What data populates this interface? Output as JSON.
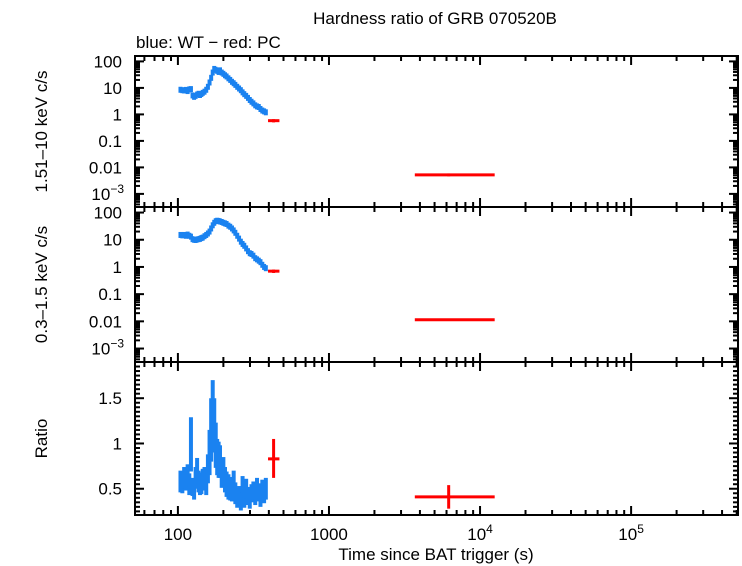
{
  "chart_data": {
    "type": "scatter",
    "title": "Hardness ratio of GRB 070520B",
    "subtitle": "blue: WT − red: PC",
    "xlabel": "Time since BAT trigger (s)",
    "xscale": "log",
    "xlim": [
      52,
      510000
    ],
    "xticks": [
      {
        "value": 100,
        "label": "100"
      },
      {
        "value": 1000,
        "label": "1000"
      },
      {
        "value": 10000,
        "label": "10",
        "sup": "4"
      },
      {
        "value": 100000,
        "label": "10",
        "sup": "5"
      }
    ],
    "colors": {
      "WT": "#1a82f0",
      "PC": "#ff0000",
      "axis": "#000000"
    },
    "legend": "subtitle-top-left",
    "panels": [
      {
        "id": "hard",
        "ylabel": "1.51–10 keV c/s",
        "yscale": "log",
        "ylim": [
          0.00032,
          160
        ],
        "yticks": [
          {
            "value": 100,
            "label": "100"
          },
          {
            "value": 10,
            "label": "10"
          },
          {
            "value": 1,
            "label": "1"
          },
          {
            "value": 0.1,
            "label": "0.1"
          },
          {
            "value": 0.01,
            "label": "0.01"
          },
          {
            "value": 0.001,
            "label": "10",
            "sup": "−3"
          }
        ],
        "series": [
          {
            "name": "WT",
            "x": [
              104,
              107,
              110,
              113,
              116,
              119,
              122,
              125,
              128,
              131,
              134,
              137,
              140,
              143,
              146,
              150,
              154,
              158,
              162,
              166,
              170,
              174,
              178,
              182,
              186,
              190,
              195,
              200,
              205,
              210,
              216,
              222,
              228,
              234,
              240,
              247,
              254,
              261,
              268,
              275,
              283,
              291,
              299,
              307,
              316,
              325,
              334,
              343,
              352,
              362,
              372,
              382
            ],
            "y": [
              8.5,
              8.2,
              8.0,
              8.4,
              7.6,
              8.8,
              9.0,
              5.2,
              4.6,
              5.0,
              5.6,
              6.0,
              5.4,
              5.9,
              6.5,
              7.2,
              8.5,
              11,
              16,
              24,
              38,
              52,
              48,
              44,
              40,
              46,
              38,
              34,
              30,
              27,
              23,
              20,
              17,
              15,
              13,
              11,
              9.5,
              8.2,
              6.8,
              5.8,
              5.0,
              4.2,
              3.5,
              3.0,
              2.6,
              2.2,
              2.0,
              1.9,
              1.6,
              1.4,
              1.3,
              1.2
            ],
            "xerr_rel": 0.015
          },
          {
            "name": "PC",
            "x": [
              430,
              6200
            ],
            "y": [
              0.58,
              0.0052
            ],
            "xlo": [
              395,
              3700
            ],
            "xhi": [
              470,
              12500
            ],
            "ylo": [
              0.5,
              0.0046
            ],
            "yhi": [
              0.66,
              0.0059
            ]
          }
        ]
      },
      {
        "id": "soft",
        "ylabel": "0.3–1.5 keV c/s",
        "yscale": "log",
        "ylim": [
          0.00032,
          160
        ],
        "yticks": [
          {
            "value": 100,
            "label": "100"
          },
          {
            "value": 10,
            "label": "10"
          },
          {
            "value": 1,
            "label": "1"
          },
          {
            "value": 0.1,
            "label": "0.1"
          },
          {
            "value": 0.01,
            "label": "0.01"
          },
          {
            "value": 0.001,
            "label": "10",
            "sup": "−3"
          }
        ],
        "series": [
          {
            "name": "WT",
            "x": [
              104,
              107,
              110,
              113,
              116,
              119,
              122,
              125,
              128,
              131,
              134,
              137,
              140,
              143,
              146,
              150,
              154,
              158,
              162,
              166,
              170,
              174,
              178,
              182,
              186,
              190,
              195,
              200,
              205,
              210,
              216,
              222,
              228,
              234,
              240,
              247,
              254,
              261,
              268,
              275,
              283,
              291,
              299,
              307,
              316,
              325,
              334,
              343,
              352,
              362,
              372,
              382
            ],
            "y": [
              15,
              14.5,
              15,
              14,
              15.5,
              14,
              13,
              10.5,
              10,
              9.8,
              10.2,
              10.5,
              10.8,
              11.5,
              12,
              13.5,
              15,
              17,
              20,
              26,
              34,
              42,
              48,
              50,
              49,
              47,
              45,
              42,
              40,
              38,
              33,
              30,
              26,
              22,
              18,
              14,
              11,
              8.5,
              7,
              6,
              4.8,
              3.8,
              3.2,
              3.0,
              2.6,
              2.1,
              1.9,
              1.7,
              1.5,
              1.2,
              1.0,
              0.9
            ],
            "xerr_rel": 0.015
          },
          {
            "name": "PC",
            "x": [
              430,
              6200
            ],
            "y": [
              0.7,
              0.0115
            ],
            "xlo": [
              395,
              3700
            ],
            "xhi": [
              470,
              12500
            ],
            "ylo": [
              0.6,
              0.0105
            ],
            "yhi": [
              0.8,
              0.0125
            ]
          }
        ]
      },
      {
        "id": "ratio",
        "ylabel": "Ratio",
        "yscale": "linear",
        "ylim": [
          0.21,
          1.9
        ],
        "yticks": [
          {
            "value": 1.5,
            "label": "1.5"
          },
          {
            "value": 1,
            "label": "1"
          },
          {
            "value": 0.5,
            "label": "0.5"
          }
        ],
        "series": [
          {
            "name": "WT",
            "x": [
              104,
              107,
              110,
              113,
              116,
              119,
              122,
              125,
              128,
              131,
              134,
              137,
              140,
              143,
              146,
              150,
              154,
              158,
              162,
              166,
              170,
              174,
              178,
              182,
              186,
              190,
              195,
              200,
              205,
              210,
              216,
              222,
              228,
              234,
              240,
              247,
              254,
              261,
              268,
              275,
              283,
              291,
              299,
              307,
              316,
              325,
              334,
              343,
              352,
              362,
              372,
              382
            ],
            "y": [
              0.58,
              0.57,
              0.62,
              0.6,
              0.65,
              0.55,
              0.99,
              0.52,
              0.48,
              0.62,
              0.7,
              0.58,
              0.55,
              0.56,
              0.6,
              0.62,
              0.55,
              0.72,
              0.9,
              1.15,
              1.4,
              1.2,
              0.98,
              0.85,
              0.82,
              0.8,
              0.66,
              0.7,
              0.6,
              0.55,
              0.52,
              0.5,
              0.48,
              0.58,
              0.45,
              0.4,
              0.42,
              0.36,
              0.52,
              0.4,
              0.5,
              0.42,
              0.38,
              0.45,
              0.48,
              0.42,
              0.52,
              0.46,
              0.4,
              0.5,
              0.44,
              0.5
            ],
            "yerr": [
              0.12,
              0.12,
              0.12,
              0.12,
              0.12,
              0.12,
              0.3,
              0.1,
              0.1,
              0.12,
              0.14,
              0.12,
              0.12,
              0.12,
              0.12,
              0.12,
              0.12,
              0.16,
              0.25,
              0.35,
              0.3,
              0.3,
              0.25,
              0.2,
              0.2,
              0.18,
              0.15,
              0.15,
              0.14,
              0.14,
              0.14,
              0.13,
              0.12,
              0.12,
              0.12,
              0.11,
              0.11,
              0.1,
              0.12,
              0.11,
              0.11,
              0.1,
              0.1,
              0.1,
              0.1,
              0.1,
              0.1,
              0.1,
              0.1,
              0.1,
              0.1,
              0.12
            ],
            "xerr_rel": 0.015
          },
          {
            "name": "PC",
            "x": [
              430,
              6200
            ],
            "y": [
              0.83,
              0.41
            ],
            "xlo": [
              395,
              3700
            ],
            "xhi": [
              470,
              12500
            ],
            "ylo": [
              0.62,
              0.28
            ],
            "yhi": [
              1.05,
              0.54
            ]
          }
        ]
      }
    ]
  }
}
